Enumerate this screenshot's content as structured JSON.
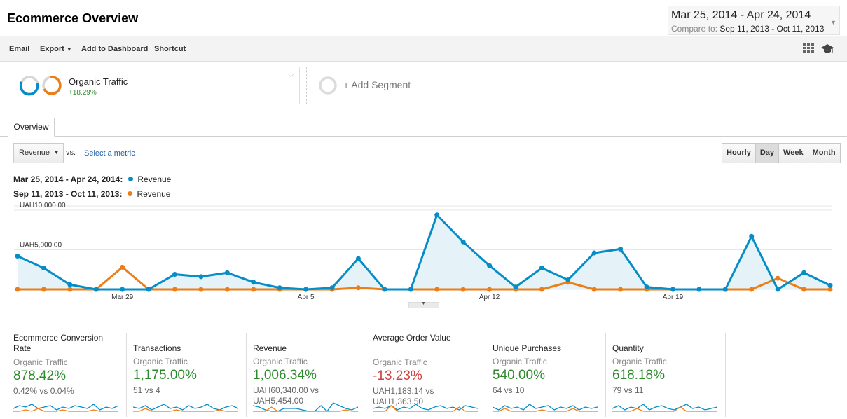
{
  "header": {
    "title": "Ecommerce Overview",
    "date_range": "Mar 25, 2014 - Apr 24, 2014",
    "compare_label": "Compare to:",
    "compare_range": "Sep 11, 2013 - Oct 11, 2013"
  },
  "toolbar": {
    "email": "Email",
    "export": "Export",
    "add_to_dashboard": "Add to Dashboard",
    "shortcut": "Shortcut"
  },
  "segments": {
    "active_name": "Organic Traffic",
    "active_change": "+18.29%",
    "add_label": "+ Add Segment"
  },
  "tabs": {
    "overview": "Overview"
  },
  "metric": {
    "selected": "Revenue",
    "vs": "vs.",
    "select_metric": "Select a metric"
  },
  "granularity": [
    "Hourly",
    "Day",
    "Week",
    "Month"
  ],
  "granularity_active": "Day",
  "legend": [
    {
      "range": "Mar 25, 2014 - Apr 24, 2014:",
      "series": "Revenue",
      "color": "#058dc7"
    },
    {
      "range": "Sep 11, 2013 - Oct 11, 2013:",
      "series": "Revenue",
      "color": "#ed7e17"
    }
  ],
  "chart_data": {
    "type": "line",
    "y_tick_labels": [
      "UAH10,000.00",
      "UAH5,000.00"
    ],
    "y_ticks": [
      10000,
      5000
    ],
    "ylim": [
      0,
      10000
    ],
    "x_tick_labels": [
      "Mar 29",
      "Apr 5",
      "Apr 12",
      "Apr 19"
    ],
    "x_tick_index": [
      4,
      11,
      18,
      25
    ],
    "series": [
      {
        "name": "Revenue",
        "color": "#058dc7",
        "values": [
          4200,
          2700,
          600,
          0,
          0,
          0,
          1900,
          1600,
          2100,
          900,
          200,
          0,
          200,
          3900,
          0,
          0,
          9400,
          6000,
          3000,
          300,
          2700,
          1200,
          4600,
          5100,
          300,
          0,
          0,
          0,
          6700,
          0,
          2100,
          500
        ]
      },
      {
        "name": "Revenue",
        "color": "#ed7e17",
        "values": [
          0,
          0,
          0,
          0,
          2800,
          0,
          0,
          0,
          0,
          0,
          0,
          0,
          0,
          200,
          0,
          0,
          0,
          0,
          0,
          0,
          0,
          900,
          0,
          0,
          0,
          0,
          0,
          0,
          0,
          1400,
          0,
          0
        ]
      }
    ]
  },
  "scorecards": [
    {
      "label": "Ecommerce Conversion Rate",
      "segment": "Organic Traffic",
      "value": "878.42%",
      "trend": "pos",
      "detail": [
        "0.42% vs 0.04%"
      ],
      "spark_a": [
        2,
        4,
        3,
        5,
        2,
        3,
        4,
        1,
        3,
        2,
        4,
        3,
        2,
        5,
        1,
        3,
        2,
        4
      ],
      "spark_b": [
        0,
        0,
        1,
        0,
        2,
        0,
        0,
        0,
        1,
        0,
        0,
        0,
        0,
        1,
        0,
        0,
        0,
        0
      ]
    },
    {
      "label": "Transactions",
      "segment": "Organic Traffic",
      "value": "1,175.00%",
      "trend": "pos",
      "detail": [
        "51 vs 4"
      ],
      "spark_a": [
        3,
        2,
        4,
        1,
        3,
        5,
        2,
        3,
        1,
        4,
        2,
        3,
        5,
        2,
        1,
        3,
        4,
        2
      ],
      "spark_b": [
        0,
        0,
        2,
        0,
        0,
        0,
        0,
        1,
        0,
        0,
        0,
        0,
        0,
        0,
        1,
        0,
        0,
        0
      ]
    },
    {
      "label": "Revenue",
      "segment": "Organic Traffic",
      "value": "1,006.34%",
      "trend": "pos",
      "detail": [
        "UAH60,340.00 vs",
        "UAH5,454.00"
      ],
      "spark_a": [
        4,
        3,
        1,
        0,
        0,
        2,
        2,
        2,
        1,
        0,
        0,
        4,
        0,
        6,
        4,
        2,
        1,
        3
      ],
      "spark_b": [
        0,
        0,
        0,
        3,
        0,
        0,
        0,
        0,
        0,
        0,
        0,
        0,
        0,
        0,
        0,
        1,
        0,
        0
      ]
    },
    {
      "label": "Average Order Value",
      "segment": "Organic Traffic",
      "value": "-13.23%",
      "trend": "neg",
      "detail": [
        "UAH1,183.14 vs",
        "UAH1,363.50"
      ],
      "spark_a": [
        2,
        3,
        2,
        4,
        1,
        3,
        2,
        5,
        2,
        1,
        3,
        4,
        2,
        3,
        1,
        4,
        3,
        2
      ],
      "spark_b": [
        0,
        0,
        0,
        4,
        0,
        0,
        0,
        0,
        0,
        0,
        0,
        0,
        0,
        0,
        3,
        0,
        0,
        0
      ]
    },
    {
      "label": "Unique Purchases",
      "segment": "Organic Traffic",
      "value": "540.00%",
      "trend": "pos",
      "detail": [
        "64 vs 10"
      ],
      "spark_a": [
        3,
        1,
        4,
        2,
        3,
        1,
        5,
        2,
        3,
        4,
        1,
        3,
        2,
        4,
        1,
        3,
        2,
        3
      ],
      "spark_b": [
        0,
        0,
        2,
        0,
        0,
        0,
        0,
        0,
        1,
        0,
        0,
        0,
        0,
        2,
        0,
        0,
        0,
        0
      ]
    },
    {
      "label": "Quantity",
      "segment": "Organic Traffic",
      "value": "618.18%",
      "trend": "pos",
      "detail": [
        "79 vs 11"
      ],
      "spark_a": [
        2,
        4,
        1,
        3,
        2,
        5,
        1,
        3,
        4,
        2,
        1,
        3,
        5,
        2,
        3,
        1,
        2,
        3
      ],
      "spark_b": [
        0,
        0,
        0,
        0,
        2,
        0,
        0,
        0,
        0,
        0,
        0,
        3,
        0,
        0,
        0,
        0,
        0,
        0
      ]
    }
  ]
}
